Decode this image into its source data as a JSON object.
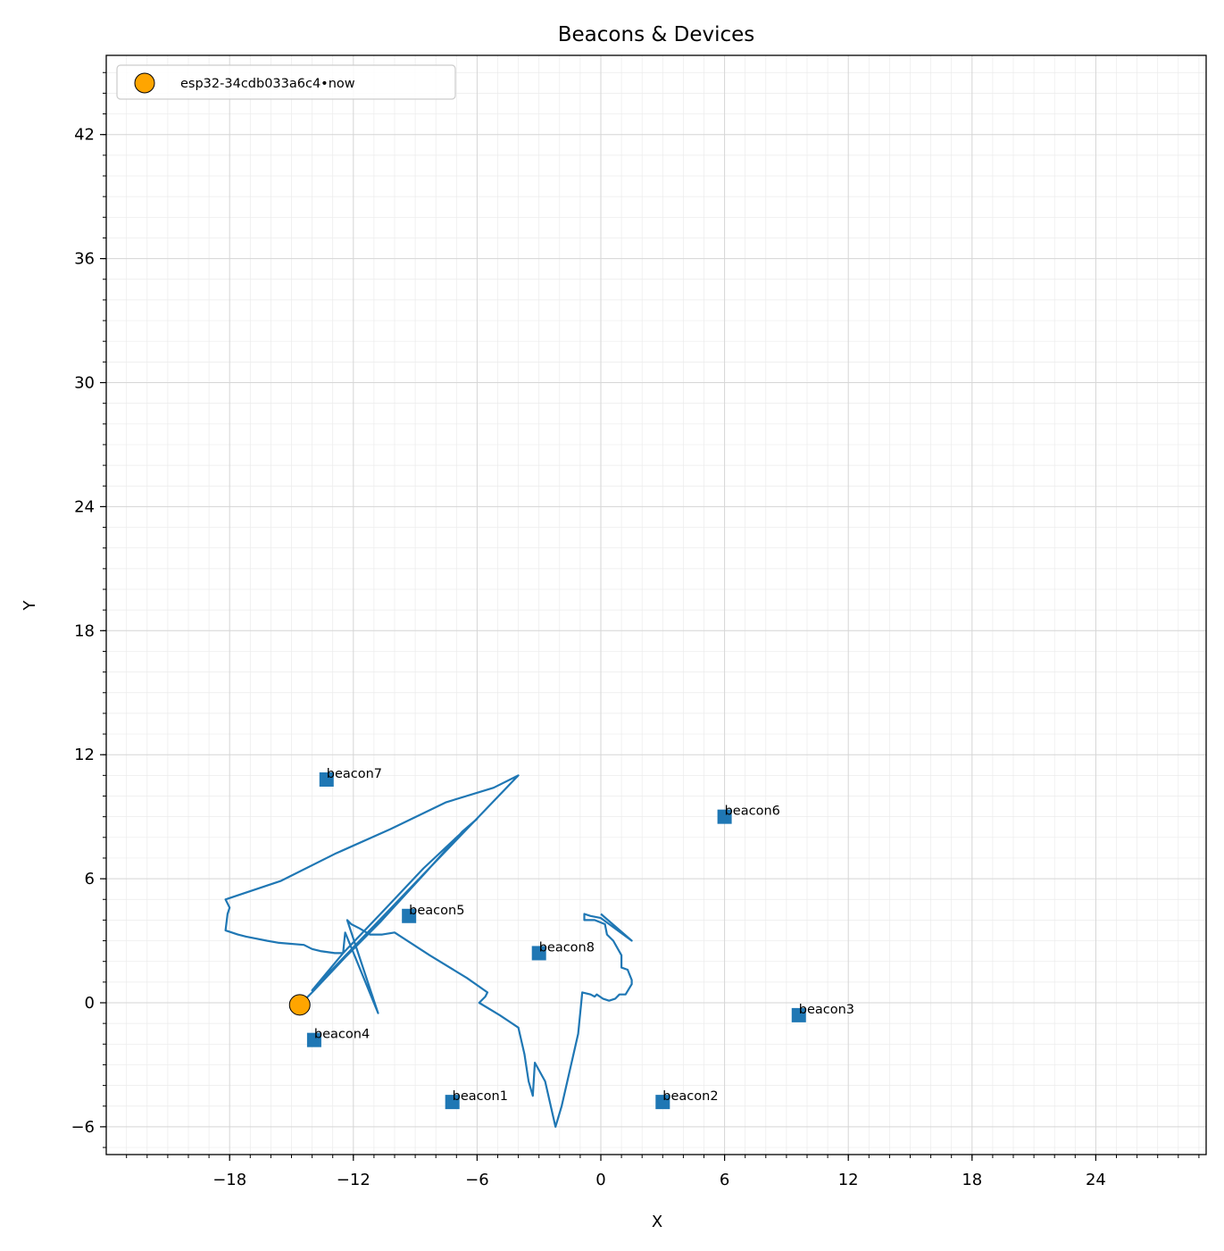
{
  "chart_data": {
    "type": "scatter",
    "title": "Beacons & Devices",
    "xlabel": "X",
    "ylabel": "Y",
    "xlim": [
      -24.2,
      29.5
    ],
    "ylim": [
      -7.3,
      45.8
    ],
    "xticks": [
      -18,
      -12,
      -6,
      0,
      6,
      12,
      18,
      24
    ],
    "yticks": [
      -6,
      0,
      6,
      12,
      18,
      24,
      30,
      36,
      42
    ],
    "xtick_labels": [
      "−18",
      "−12",
      "−6",
      "0",
      "6",
      "12",
      "18",
      "24"
    ],
    "ytick_labels": [
      "−6",
      "0",
      "6",
      "12",
      "18",
      "24",
      "30",
      "36",
      "42"
    ],
    "grid": true,
    "legend_position": "upper-left",
    "colors": {
      "beacon": "#1f77b4",
      "track": "#1f77b4",
      "device": "#ffa500"
    },
    "beacons": [
      {
        "name": "beacon1",
        "x": -7.2,
        "y": -4.8
      },
      {
        "name": "beacon2",
        "x": 3.0,
        "y": -4.8
      },
      {
        "name": "beacon3",
        "x": 9.6,
        "y": -0.6
      },
      {
        "name": "beacon4",
        "x": -13.9,
        "y": -1.8
      },
      {
        "name": "beacon5",
        "x": -9.3,
        "y": 4.2
      },
      {
        "name": "beacon6",
        "x": 6.0,
        "y": 9.0
      },
      {
        "name": "beacon7",
        "x": -13.3,
        "y": 10.8
      },
      {
        "name": "beacon8",
        "x": -3.0,
        "y": 2.4
      }
    ],
    "device": {
      "label": "esp32-34cdb033a6c4•now",
      "x": -14.6,
      "y": -0.1
    },
    "track": [
      [
        -14.6,
        -0.1
      ],
      [
        -14.0,
        0.5
      ],
      [
        -12.4,
        2.2
      ],
      [
        -10.7,
        3.9
      ],
      [
        -8.5,
        6.3
      ],
      [
        -6.7,
        8.3
      ],
      [
        -6.0,
        8.9
      ],
      [
        -7.0,
        8.0
      ],
      [
        -8.6,
        6.5
      ],
      [
        -10.4,
        4.6
      ],
      [
        -12.5,
        2.4
      ],
      [
        -14.0,
        0.6
      ],
      [
        -4.0,
        11.0
      ],
      [
        -5.2,
        10.4
      ],
      [
        -7.5,
        9.7
      ],
      [
        -10.2,
        8.4
      ],
      [
        -12.9,
        7.2
      ],
      [
        -15.5,
        5.9
      ],
      [
        -18.2,
        5.0
      ],
      [
        -18.0,
        4.6
      ],
      [
        -18.1,
        4.3
      ],
      [
        -18.2,
        3.5
      ],
      [
        -17.6,
        3.3
      ],
      [
        -17.2,
        3.2
      ],
      [
        -16.7,
        3.1
      ],
      [
        -16.2,
        3.0
      ],
      [
        -15.6,
        2.9
      ],
      [
        -14.4,
        2.8
      ],
      [
        -14.0,
        2.6
      ],
      [
        -13.6,
        2.5
      ],
      [
        -12.9,
        2.4
      ],
      [
        -12.5,
        2.4
      ],
      [
        -12.4,
        3.4
      ],
      [
        -10.8,
        -0.5
      ],
      [
        -12.3,
        4.0
      ],
      [
        -12.1,
        3.8
      ],
      [
        -11.7,
        3.6
      ],
      [
        -11.2,
        3.3
      ],
      [
        -10.6,
        3.3
      ],
      [
        -10.0,
        3.4
      ],
      [
        -8.3,
        2.3
      ],
      [
        -6.5,
        1.2
      ],
      [
        -5.5,
        0.5
      ],
      [
        -5.6,
        0.3
      ],
      [
        -5.9,
        0.0
      ],
      [
        -4.9,
        -0.6
      ],
      [
        -4.0,
        -1.2
      ],
      [
        -3.7,
        -2.5
      ],
      [
        -3.5,
        -3.8
      ],
      [
        -3.3,
        -4.5
      ],
      [
        -3.2,
        -2.9
      ],
      [
        -2.7,
        -3.8
      ],
      [
        -2.2,
        -6.0
      ],
      [
        -1.9,
        -5.0
      ],
      [
        -1.1,
        -1.5
      ],
      [
        -0.9,
        0.5
      ],
      [
        -0.5,
        0.4
      ],
      [
        -0.3,
        0.3
      ],
      [
        -0.2,
        0.4
      ],
      [
        0.1,
        0.2
      ],
      [
        0.4,
        0.1
      ],
      [
        0.7,
        0.2
      ],
      [
        0.9,
        0.4
      ],
      [
        1.2,
        0.4
      ],
      [
        1.5,
        0.9
      ],
      [
        1.5,
        1.1
      ],
      [
        1.3,
        1.6
      ],
      [
        1.0,
        1.7
      ],
      [
        1.0,
        2.3
      ],
      [
        0.6,
        3.0
      ],
      [
        0.3,
        3.3
      ],
      [
        0.2,
        3.8
      ],
      [
        -0.3,
        4.0
      ],
      [
        -0.8,
        4.0
      ],
      [
        -0.8,
        4.3
      ],
      [
        -0.5,
        4.2
      ],
      [
        0.0,
        4.1
      ],
      [
        1.5,
        3.0
      ],
      [
        0.0,
        4.3
      ]
    ]
  }
}
